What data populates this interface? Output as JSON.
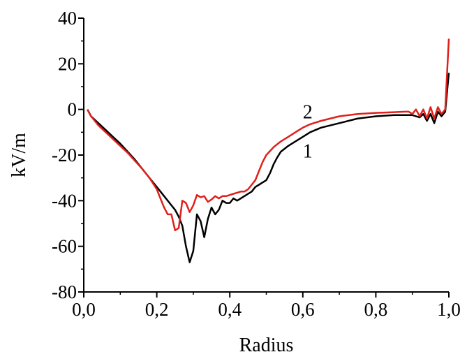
{
  "chart_data": {
    "type": "line",
    "xlabel": "Radius",
    "ylabel": "kV/m",
    "xlim": [
      0.0,
      1.0
    ],
    "ylim": [
      -80,
      40
    ],
    "x_ticks": [
      "0,0",
      "0,2",
      "0,4",
      "0,6",
      "0,8",
      "1,0"
    ],
    "x_tick_values": [
      0.0,
      0.2,
      0.4,
      0.6,
      0.8,
      1.0
    ],
    "y_ticks": [
      "40",
      "20",
      "0",
      "-20",
      "-40",
      "-60",
      "-80"
    ],
    "y_tick_values": [
      40,
      20,
      0,
      -20,
      -40,
      -60,
      -80
    ],
    "grid": false,
    "series": [
      {
        "name": "1",
        "color": "#000000",
        "points": [
          [
            0.01,
            0
          ],
          [
            0.02,
            -3
          ],
          [
            0.04,
            -6
          ],
          [
            0.06,
            -9
          ],
          [
            0.08,
            -12
          ],
          [
            0.1,
            -15
          ],
          [
            0.12,
            -18.5
          ],
          [
            0.14,
            -22
          ],
          [
            0.16,
            -26
          ],
          [
            0.18,
            -30
          ],
          [
            0.2,
            -34
          ],
          [
            0.22,
            -38
          ],
          [
            0.24,
            -42
          ],
          [
            0.25,
            -44
          ],
          [
            0.26,
            -47
          ],
          [
            0.27,
            -51
          ],
          [
            0.28,
            -60
          ],
          [
            0.29,
            -67
          ],
          [
            0.3,
            -62
          ],
          [
            0.31,
            -46
          ],
          [
            0.32,
            -49
          ],
          [
            0.33,
            -56
          ],
          [
            0.34,
            -48
          ],
          [
            0.35,
            -43
          ],
          [
            0.36,
            -46
          ],
          [
            0.37,
            -44
          ],
          [
            0.38,
            -40
          ],
          [
            0.39,
            -41
          ],
          [
            0.4,
            -41
          ],
          [
            0.41,
            -39
          ],
          [
            0.42,
            -40
          ],
          [
            0.43,
            -39
          ],
          [
            0.44,
            -38
          ],
          [
            0.45,
            -37
          ],
          [
            0.46,
            -36
          ],
          [
            0.47,
            -34
          ],
          [
            0.48,
            -33
          ],
          [
            0.49,
            -32
          ],
          [
            0.5,
            -31
          ],
          [
            0.51,
            -28
          ],
          [
            0.52,
            -24
          ],
          [
            0.53,
            -21
          ],
          [
            0.54,
            -18.5
          ],
          [
            0.56,
            -16
          ],
          [
            0.58,
            -14
          ],
          [
            0.6,
            -12
          ],
          [
            0.62,
            -10
          ],
          [
            0.65,
            -8
          ],
          [
            0.7,
            -6
          ],
          [
            0.75,
            -4
          ],
          [
            0.8,
            -3
          ],
          [
            0.85,
            -2.5
          ],
          [
            0.9,
            -2.5
          ],
          [
            0.92,
            -3.5
          ],
          [
            0.93,
            -2
          ],
          [
            0.94,
            -5
          ],
          [
            0.95,
            -2
          ],
          [
            0.96,
            -6
          ],
          [
            0.97,
            -1
          ],
          [
            0.98,
            -3
          ],
          [
            0.99,
            -1
          ],
          [
            1.0,
            16
          ]
        ]
      },
      {
        "name": "2",
        "color": "#e0201b",
        "points": [
          [
            0.01,
            0
          ],
          [
            0.02,
            -3
          ],
          [
            0.04,
            -7
          ],
          [
            0.06,
            -10
          ],
          [
            0.08,
            -13
          ],
          [
            0.1,
            -16
          ],
          [
            0.12,
            -19
          ],
          [
            0.14,
            -22.5
          ],
          [
            0.16,
            -26
          ],
          [
            0.18,
            -30
          ],
          [
            0.2,
            -35
          ],
          [
            0.21,
            -39
          ],
          [
            0.22,
            -43
          ],
          [
            0.23,
            -46
          ],
          [
            0.24,
            -46
          ],
          [
            0.25,
            -53
          ],
          [
            0.26,
            -52
          ],
          [
            0.27,
            -40
          ],
          [
            0.28,
            -41
          ],
          [
            0.29,
            -45
          ],
          [
            0.3,
            -42
          ],
          [
            0.31,
            -37.5
          ],
          [
            0.32,
            -38.5
          ],
          [
            0.33,
            -38
          ],
          [
            0.34,
            -40.5
          ],
          [
            0.35,
            -39.5
          ],
          [
            0.36,
            -38
          ],
          [
            0.37,
            -39
          ],
          [
            0.38,
            -38
          ],
          [
            0.39,
            -38
          ],
          [
            0.4,
            -37.5
          ],
          [
            0.41,
            -37
          ],
          [
            0.42,
            -36.5
          ],
          [
            0.43,
            -36
          ],
          [
            0.44,
            -36
          ],
          [
            0.45,
            -35
          ],
          [
            0.46,
            -33
          ],
          [
            0.47,
            -31
          ],
          [
            0.48,
            -27
          ],
          [
            0.49,
            -23
          ],
          [
            0.5,
            -20
          ],
          [
            0.52,
            -16.5
          ],
          [
            0.54,
            -14
          ],
          [
            0.56,
            -12
          ],
          [
            0.58,
            -10
          ],
          [
            0.6,
            -8
          ],
          [
            0.62,
            -6.5
          ],
          [
            0.65,
            -5
          ],
          [
            0.7,
            -3
          ],
          [
            0.75,
            -2
          ],
          [
            0.8,
            -1.5
          ],
          [
            0.85,
            -1.2
          ],
          [
            0.88,
            -1
          ],
          [
            0.89,
            -1
          ],
          [
            0.9,
            -2
          ],
          [
            0.91,
            0
          ],
          [
            0.92,
            -3
          ],
          [
            0.93,
            0
          ],
          [
            0.94,
            -4
          ],
          [
            0.95,
            1
          ],
          [
            0.96,
            -4
          ],
          [
            0.97,
            1
          ],
          [
            0.98,
            -2
          ],
          [
            0.99,
            0
          ],
          [
            1.0,
            31
          ]
        ]
      }
    ],
    "annotations": [
      "1",
      "2"
    ]
  }
}
